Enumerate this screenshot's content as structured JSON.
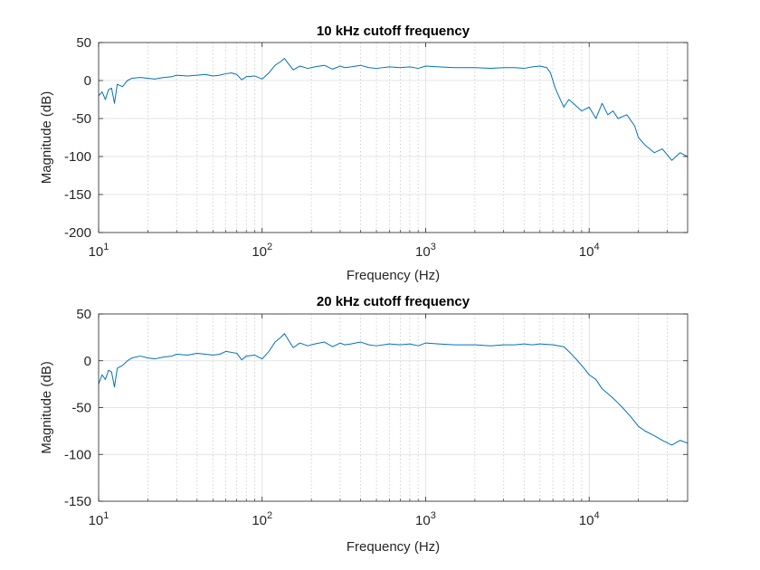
{
  "chart_data": [
    {
      "type": "line",
      "title": "10 kHz cutoff frequency",
      "xlabel": "Frequency (Hz)",
      "ylabel": "Magnitude (dB)",
      "xscale": "log",
      "xlim": [
        10,
        40000
      ],
      "ylim": [
        -200,
        50
      ],
      "yticks": [
        "50",
        "0",
        "-50",
        "-100",
        "-150",
        "-200"
      ],
      "yticks_values": [
        50,
        0,
        -50,
        -100,
        -150,
        -200
      ],
      "xticks": [
        {
          "value": 10,
          "base": "10",
          "exp": "1"
        },
        {
          "value": 100,
          "base": "10",
          "exp": "2"
        },
        {
          "value": 1000,
          "base": "10",
          "exp": "3"
        },
        {
          "value": 10000,
          "base": "10",
          "exp": "4"
        }
      ],
      "grid": true,
      "color": "#0072BD",
      "series": [
        {
          "x": [
            10,
            10.5,
            11,
            11.5,
            12,
            12.5,
            13,
            14,
            15,
            16,
            18,
            20,
            22,
            25,
            28,
            30,
            35,
            40,
            45,
            50,
            55,
            60,
            65,
            70,
            75,
            80,
            90,
            100,
            110,
            120,
            130,
            137,
            145,
            155,
            170,
            190,
            210,
            240,
            270,
            300,
            320,
            350,
            400,
            450,
            500,
            600,
            700,
            800,
            900,
            1000,
            1200,
            1500,
            2000,
            2500,
            3000,
            3500,
            4000,
            4500,
            5000,
            5500,
            5800,
            6000,
            6200,
            6500,
            7000,
            7500,
            8000,
            9000,
            10000,
            11000,
            12000,
            13000,
            14000,
            15000,
            17000,
            19000,
            20000,
            22000,
            25000,
            28000,
            32000,
            36000,
            40000
          ],
          "y": [
            -20,
            -15,
            -25,
            -12,
            -10,
            -30,
            -5,
            -8,
            0,
            3,
            4,
            3,
            2,
            4,
            5,
            7,
            6,
            7,
            8,
            6,
            7,
            9,
            10,
            8,
            1,
            5,
            6,
            2,
            10,
            20,
            25,
            29,
            22,
            14,
            19,
            16,
            18,
            20,
            15,
            19,
            17,
            18,
            20,
            17,
            16,
            18,
            17,
            18,
            16,
            19,
            18,
            17,
            17,
            16,
            17,
            17,
            16,
            18,
            19,
            17,
            10,
            0,
            -10,
            -20,
            -35,
            -25,
            -30,
            -40,
            -35,
            -50,
            -30,
            -45,
            -40,
            -50,
            -45,
            -60,
            -75,
            -85,
            -95,
            -90,
            -105,
            -95,
            -100
          ]
        }
      ]
    },
    {
      "type": "line",
      "title": "20 kHz cutoff frequency",
      "xlabel": "Frequency (Hz)",
      "ylabel": "Magnitude (dB)",
      "xscale": "log",
      "xlim": [
        10,
        40000
      ],
      "ylim": [
        -150,
        50
      ],
      "yticks": [
        "50",
        "0",
        "-50",
        "-100",
        "-150"
      ],
      "yticks_values": [
        50,
        0,
        -50,
        -100,
        -150
      ],
      "xticks": [
        {
          "value": 10,
          "base": "10",
          "exp": "1"
        },
        {
          "value": 100,
          "base": "10",
          "exp": "2"
        },
        {
          "value": 1000,
          "base": "10",
          "exp": "3"
        },
        {
          "value": 10000,
          "base": "10",
          "exp": "4"
        }
      ],
      "grid": true,
      "color": "#0072BD",
      "series": [
        {
          "x": [
            10,
            10.5,
            11,
            11.5,
            12,
            12.5,
            13,
            14,
            15,
            16,
            18,
            20,
            22,
            25,
            28,
            30,
            35,
            40,
            45,
            50,
            55,
            60,
            65,
            70,
            75,
            80,
            90,
            100,
            110,
            120,
            130,
            137,
            145,
            155,
            170,
            190,
            210,
            240,
            270,
            300,
            320,
            350,
            400,
            450,
            500,
            600,
            700,
            800,
            900,
            1000,
            1200,
            1500,
            2000,
            2500,
            3000,
            3500,
            4000,
            4500,
            5000,
            6000,
            7000,
            7500,
            8000,
            8500,
            9000,
            9500,
            10000,
            11000,
            12000,
            13000,
            14000,
            15000,
            16000,
            18000,
            20000,
            22000,
            25000,
            28000,
            32000,
            36000,
            40000
          ],
          "y": [
            -25,
            -15,
            -20,
            -10,
            -12,
            -28,
            -8,
            -5,
            0,
            3,
            5,
            3,
            2,
            4,
            5,
            7,
            6,
            8,
            7,
            6,
            7,
            10,
            9,
            8,
            1,
            5,
            6,
            2,
            10,
            20,
            25,
            29,
            22,
            14,
            19,
            16,
            18,
            20,
            15,
            19,
            17,
            18,
            20,
            17,
            16,
            18,
            17,
            18,
            16,
            19,
            18,
            17,
            17,
            16,
            17,
            17,
            18,
            17,
            18,
            17,
            15,
            10,
            5,
            0,
            -5,
            -10,
            -15,
            -20,
            -30,
            -35,
            -40,
            -45,
            -50,
            -60,
            -70,
            -75,
            -80,
            -85,
            -90,
            -85,
            -88
          ]
        }
      ]
    }
  ]
}
